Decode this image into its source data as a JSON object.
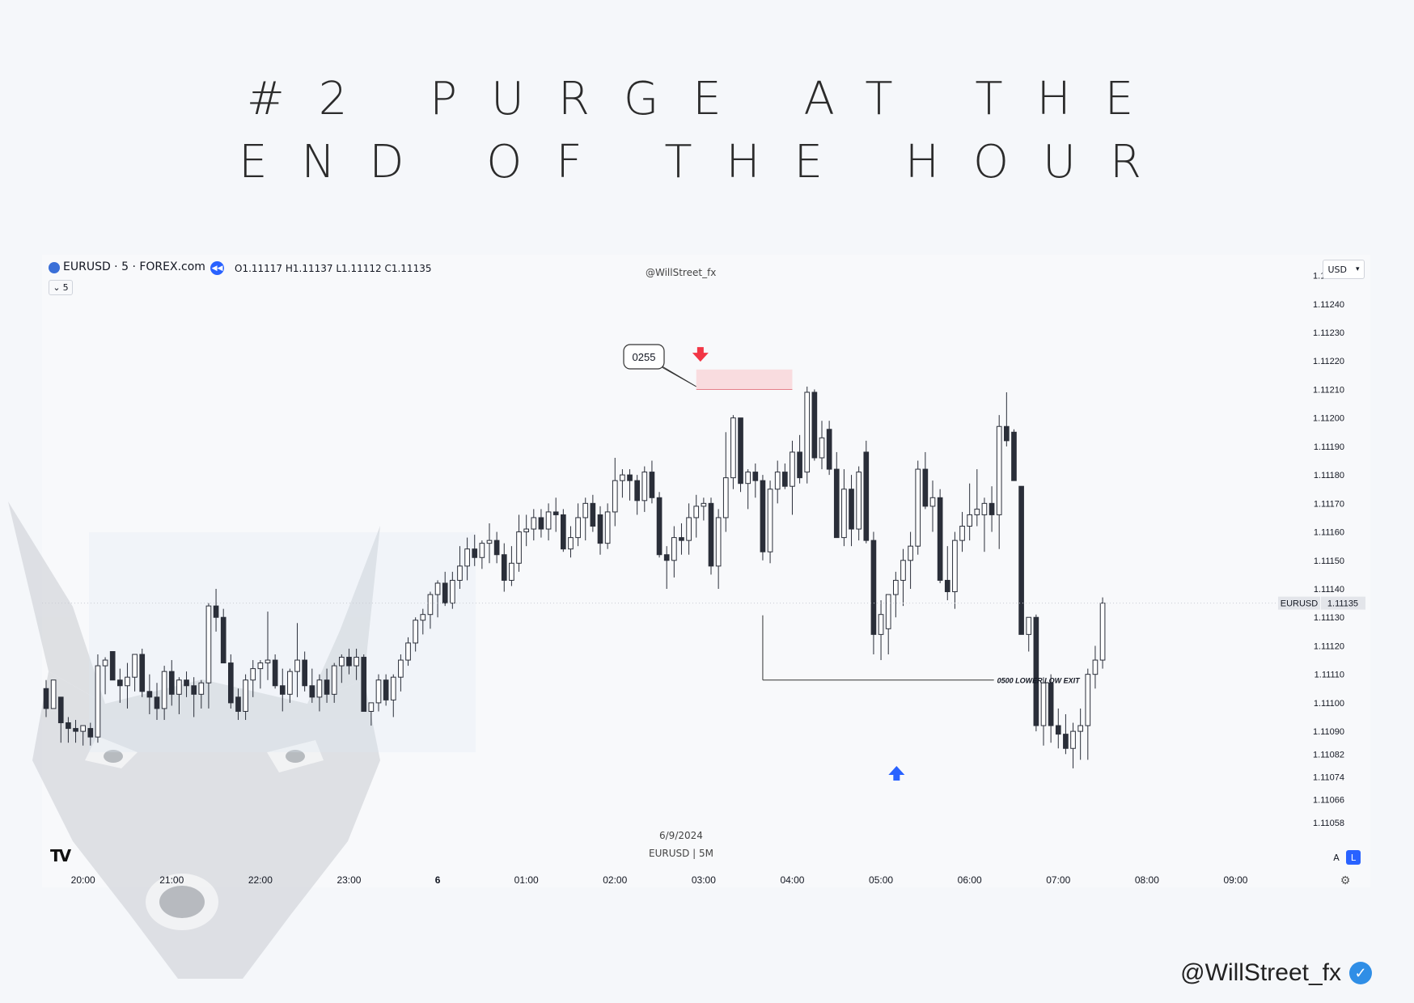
{
  "title": {
    "line1": "#2 PURGE AT THE",
    "line2": "END OF THE HOUR"
  },
  "header": {
    "symbol": "EURUSD · 5 · FOREX.com",
    "ohlc": "O1.11117 H1.11137 L1.11112 C1.11135",
    "center_watermark": "@WillStreet_fx",
    "interval": "5",
    "currency": "USD"
  },
  "footer": {
    "date": "6/9/2024",
    "symbol_tf": "EURUSD | 5M",
    "handle": "@WillStreet_fx"
  },
  "corner_buttons": {
    "auto": "A",
    "log": "L"
  },
  "colors": {
    "up": "#ffffff",
    "down": "#2a2e39",
    "wick": "#2a2e39",
    "marker_down": "#f23645",
    "marker_up": "#2962ff",
    "zone": "#f9d5d8",
    "badge": "#2f8ee6"
  },
  "icons": {
    "replay": "rewind-icon",
    "settings": "gear-icon",
    "verified": "verified-badge-icon",
    "tradingview": "tradingview-logo-icon"
  },
  "chart_data": {
    "type": "candlestick",
    "title": "",
    "symbol": "EURUSD",
    "timeframe": "5M",
    "ylim": [
      1.1105,
      1.11253
    ],
    "y_ticks": [
      "1.11250",
      "1.11240",
      "1.11230",
      "1.11220",
      "1.11210",
      "1.11200",
      "1.11190",
      "1.11180",
      "1.11170",
      "1.11160",
      "1.11150",
      "1.11140",
      "1.11130",
      "1.11120",
      "1.11110",
      "1.11100",
      "1.11090",
      "1.11082",
      "1.11074",
      "1.11066",
      "1.11058"
    ],
    "x_ticks": [
      "20:00",
      "21:00",
      "22:00",
      "23:00",
      "6",
      "01:00",
      "02:00",
      "03:00",
      "04:00",
      "05:00",
      "06:00",
      "07:00",
      "08:00",
      "09:00"
    ],
    "start_time": "19:35",
    "candles": [
      [
        1.11105,
        1.11108,
        1.11095,
        1.11098
      ],
      [
        1.11098,
        1.11108,
        1.11098,
        1.11108
      ],
      [
        1.11102,
        1.11102,
        1.11086,
        1.11093
      ],
      [
        1.11093,
        1.11095,
        1.11086,
        1.11091
      ],
      [
        1.11091,
        1.11094,
        1.11086,
        1.1109
      ],
      [
        1.1109,
        1.11092,
        1.11085,
        1.11092
      ],
      [
        1.11091,
        1.11093,
        1.11085,
        1.11088
      ],
      [
        1.11088,
        1.11117,
        1.11086,
        1.11113
      ],
      [
        1.11113,
        1.11116,
        1.11103,
        1.11115
      ],
      [
        1.11118,
        1.11118,
        1.11108,
        1.11108
      ],
      [
        1.11108,
        1.11112,
        1.111,
        1.11106
      ],
      [
        1.11106,
        1.11114,
        1.11098,
        1.11109
      ],
      [
        1.11109,
        1.11117,
        1.11104,
        1.11117
      ],
      [
        1.11117,
        1.11119,
        1.11102,
        1.11104
      ],
      [
        1.11104,
        1.1111,
        1.11096,
        1.11102
      ],
      [
        1.11102,
        1.11107,
        1.11094,
        1.11098
      ],
      [
        1.11098,
        1.11113,
        1.11094,
        1.11111
      ],
      [
        1.11111,
        1.11115,
        1.11099,
        1.11103
      ],
      [
        1.11103,
        1.11109,
        1.11096,
        1.11108
      ],
      [
        1.11108,
        1.11111,
        1.11102,
        1.11106
      ],
      [
        1.11106,
        1.11109,
        1.11095,
        1.11103
      ],
      [
        1.11103,
        1.11108,
        1.11098,
        1.11107
      ],
      [
        1.11107,
        1.11135,
        1.11098,
        1.11134
      ],
      [
        1.11134,
        1.1114,
        1.11125,
        1.1113
      ],
      [
        1.1113,
        1.11133,
        1.11114,
        1.11114
      ],
      [
        1.11114,
        1.11117,
        1.11098,
        1.111
      ],
      [
        1.11102,
        1.11105,
        1.11094,
        1.11097
      ],
      [
        1.11097,
        1.1111,
        1.11094,
        1.11108
      ],
      [
        1.11108,
        1.11115,
        1.11102,
        1.11112
      ],
      [
        1.11112,
        1.11115,
        1.11105,
        1.11114
      ],
      [
        1.11114,
        1.11132,
        1.11108,
        1.11115
      ],
      [
        1.11115,
        1.11117,
        1.11105,
        1.11106
      ],
      [
        1.11106,
        1.11112,
        1.11097,
        1.11103
      ],
      [
        1.11103,
        1.11112,
        1.111,
        1.11111
      ],
      [
        1.11111,
        1.11128,
        1.11102,
        1.11115
      ],
      [
        1.11115,
        1.11118,
        1.11104,
        1.11106
      ],
      [
        1.11106,
        1.11112,
        1.111,
        1.11102
      ],
      [
        1.11102,
        1.1111,
        1.11097,
        1.11108
      ],
      [
        1.11108,
        1.11112,
        1.111,
        1.11103
      ],
      [
        1.11103,
        1.11114,
        1.111,
        1.11113
      ],
      [
        1.11113,
        1.11117,
        1.11107,
        1.11116
      ],
      [
        1.11116,
        1.11119,
        1.1111,
        1.11113
      ],
      [
        1.11113,
        1.11119,
        1.11108,
        1.11116
      ],
      [
        1.11116,
        1.11117,
        1.11097,
        1.11097
      ],
      [
        1.11097,
        1.111,
        1.11092,
        1.111
      ],
      [
        1.111,
        1.1111,
        1.11097,
        1.11108
      ],
      [
        1.11108,
        1.1111,
        1.11099,
        1.11101
      ],
      [
        1.11101,
        1.1111,
        1.11095,
        1.11109
      ],
      [
        1.11109,
        1.11117,
        1.11104,
        1.11115
      ],
      [
        1.11115,
        1.11123,
        1.11113,
        1.11121
      ],
      [
        1.11121,
        1.1113,
        1.11118,
        1.11129
      ],
      [
        1.11129,
        1.11133,
        1.11124,
        1.11131
      ],
      [
        1.11131,
        1.11139,
        1.11126,
        1.11138
      ],
      [
        1.11138,
        1.11143,
        1.1113,
        1.11142
      ],
      [
        1.11142,
        1.11146,
        1.11134,
        1.11135
      ],
      [
        1.11135,
        1.11146,
        1.11133,
        1.11143
      ],
      [
        1.11143,
        1.11155,
        1.1114,
        1.11148
      ],
      [
        1.11148,
        1.11158,
        1.11143,
        1.11154
      ],
      [
        1.11154,
        1.11159,
        1.11148,
        1.11151
      ],
      [
        1.11151,
        1.11157,
        1.11147,
        1.11156
      ],
      [
        1.11156,
        1.11163,
        1.11149,
        1.11157
      ],
      [
        1.11157,
        1.1116,
        1.11149,
        1.11152
      ],
      [
        1.11152,
        1.11156,
        1.11139,
        1.11143
      ],
      [
        1.11143,
        1.11155,
        1.11141,
        1.11149
      ],
      [
        1.11149,
        1.11166,
        1.11146,
        1.1116
      ],
      [
        1.1116,
        1.11166,
        1.11155,
        1.11161
      ],
      [
        1.11161,
        1.11168,
        1.11157,
        1.11165
      ],
      [
        1.11165,
        1.11168,
        1.11158,
        1.11161
      ],
      [
        1.11161,
        1.1117,
        1.11157,
        1.11167
      ],
      [
        1.11167,
        1.11172,
        1.1116,
        1.11166
      ],
      [
        1.11166,
        1.11168,
        1.11153,
        1.11154
      ],
      [
        1.11154,
        1.11162,
        1.11151,
        1.11158
      ],
      [
        1.11158,
        1.1117,
        1.11155,
        1.11165
      ],
      [
        1.11165,
        1.11172,
        1.11157,
        1.1117
      ],
      [
        1.1117,
        1.11173,
        1.1116,
        1.11162
      ],
      [
        1.11166,
        1.11169,
        1.11152,
        1.11156
      ],
      [
        1.11156,
        1.1117,
        1.11154,
        1.11167
      ],
      [
        1.11167,
        1.11186,
        1.11162,
        1.11178
      ],
      [
        1.11178,
        1.11182,
        1.11172,
        1.1118
      ],
      [
        1.1118,
        1.11182,
        1.11171,
        1.11178
      ],
      [
        1.11178,
        1.1118,
        1.11166,
        1.11171
      ],
      [
        1.11171,
        1.11183,
        1.11167,
        1.11181
      ],
      [
        1.11181,
        1.11185,
        1.1117,
        1.11172
      ],
      [
        1.11172,
        1.11174,
        1.11151,
        1.11152
      ],
      [
        1.11152,
        1.11155,
        1.1114,
        1.1115
      ],
      [
        1.1115,
        1.11162,
        1.11144,
        1.11158
      ],
      [
        1.11158,
        1.11163,
        1.11152,
        1.11157
      ],
      [
        1.11157,
        1.1117,
        1.11152,
        1.11165
      ],
      [
        1.11165,
        1.11173,
        1.11158,
        1.11169
      ],
      [
        1.11169,
        1.11172,
        1.11164,
        1.1117
      ],
      [
        1.1117,
        1.11172,
        1.11145,
        1.11148
      ],
      [
        1.11148,
        1.11168,
        1.1114,
        1.11165
      ],
      [
        1.11165,
        1.11195,
        1.1116,
        1.11179
      ],
      [
        1.11179,
        1.11201,
        1.11175,
        1.112
      ],
      [
        1.112,
        1.112,
        1.11174,
        1.11177
      ],
      [
        1.11177,
        1.11182,
        1.11168,
        1.11181
      ],
      [
        1.11181,
        1.11184,
        1.11172,
        1.11178
      ],
      [
        1.11178,
        1.1118,
        1.1115,
        1.11153
      ],
      [
        1.11153,
        1.11178,
        1.11149,
        1.11175
      ],
      [
        1.11175,
        1.11185,
        1.1117,
        1.11181
      ],
      [
        1.11181,
        1.11184,
        1.11175,
        1.11176
      ],
      [
        1.11176,
        1.11192,
        1.11166,
        1.11188
      ],
      [
        1.11188,
        1.11194,
        1.11177,
        1.11179
      ],
      [
        1.11181,
        1.11211,
        1.11177,
        1.11209
      ],
      [
        1.11209,
        1.1121,
        1.11185,
        1.11186
      ],
      [
        1.11186,
        1.11199,
        1.11182,
        1.11193
      ],
      [
        1.11196,
        1.11199,
        1.1118,
        1.11182
      ],
      [
        1.11182,
        1.11188,
        1.11158,
        1.11158
      ],
      [
        1.11158,
        1.11182,
        1.11155,
        1.11175
      ],
      [
        1.11175,
        1.1118,
        1.11155,
        1.11161
      ],
      [
        1.11161,
        1.11183,
        1.11157,
        1.11181
      ],
      [
        1.11188,
        1.11192,
        1.11156,
        1.11157
      ],
      [
        1.11157,
        1.1116,
        1.11117,
        1.11124
      ],
      [
        1.11124,
        1.11136,
        1.11115,
        1.11131
      ],
      [
        1.11126,
        1.11138,
        1.11117,
        1.11138
      ],
      [
        1.11138,
        1.11146,
        1.1113,
        1.11143
      ],
      [
        1.11143,
        1.11154,
        1.11134,
        1.1115
      ],
      [
        1.1115,
        1.1116,
        1.1114,
        1.11155
      ],
      [
        1.11155,
        1.11185,
        1.11152,
        1.11182
      ],
      [
        1.11182,
        1.11188,
        1.11168,
        1.11169
      ],
      [
        1.11169,
        1.11178,
        1.1116,
        1.11172
      ],
      [
        1.11172,
        1.11175,
        1.11142,
        1.11143
      ],
      [
        1.11143,
        1.11155,
        1.11136,
        1.11139
      ],
      [
        1.11139,
        1.1116,
        1.11133,
        1.11157
      ],
      [
        1.11157,
        1.11167,
        1.11153,
        1.11162
      ],
      [
        1.11162,
        1.11177,
        1.11157,
        1.11166
      ],
      [
        1.11166,
        1.11182,
        1.11162,
        1.11168
      ],
      [
        1.11166,
        1.11172,
        1.11153,
        1.1117
      ],
      [
        1.1117,
        1.11176,
        1.1116,
        1.11166
      ],
      [
        1.11166,
        1.11201,
        1.11154,
        1.11197
      ],
      [
        1.11197,
        1.11209,
        1.1119,
        1.11192
      ],
      [
        1.11195,
        1.11196,
        1.11178,
        1.11178
      ],
      [
        1.11176,
        1.11176,
        1.11124,
        1.11124
      ],
      [
        1.11124,
        1.1113,
        1.11118,
        1.1113
      ],
      [
        1.1113,
        1.11131,
        1.1109,
        1.11092
      ],
      [
        1.11092,
        1.11109,
        1.11085,
        1.11107
      ],
      [
        1.11107,
        1.1111,
        1.11086,
        1.11092
      ],
      [
        1.11092,
        1.11098,
        1.11084,
        1.11089
      ],
      [
        1.11089,
        1.11096,
        1.11082,
        1.11084
      ],
      [
        1.11084,
        1.11093,
        1.11077,
        1.1109
      ],
      [
        1.1109,
        1.11098,
        1.1108,
        1.11092
      ],
      [
        1.11092,
        1.11112,
        1.1108,
        1.1111
      ],
      [
        1.1111,
        1.1112,
        1.11105,
        1.11115
      ],
      [
        1.11115,
        1.11137,
        1.11112,
        1.11135
      ]
    ],
    "annotations": [
      {
        "type": "callout",
        "text": "0255",
        "time": "02:55",
        "price": 1.11211
      },
      {
        "type": "zone",
        "price_low": 1.1121,
        "price_high": 1.11217,
        "time_from": "02:55",
        "time_to": "04:00"
      },
      {
        "type": "arrow_down",
        "color": "#f23645",
        "time": "03:00",
        "price": 1.11222
      },
      {
        "type": "arrow_up",
        "color": "#2962ff",
        "time": "05:10",
        "price": 1.11075
      },
      {
        "type": "hline",
        "text": "0500 LOWER LOW EXIT",
        "price": 1.11108,
        "time_from": "03:40",
        "time_to": "06:00"
      }
    ],
    "last_price": {
      "label": "EURUSD",
      "value": "1.11135"
    }
  }
}
